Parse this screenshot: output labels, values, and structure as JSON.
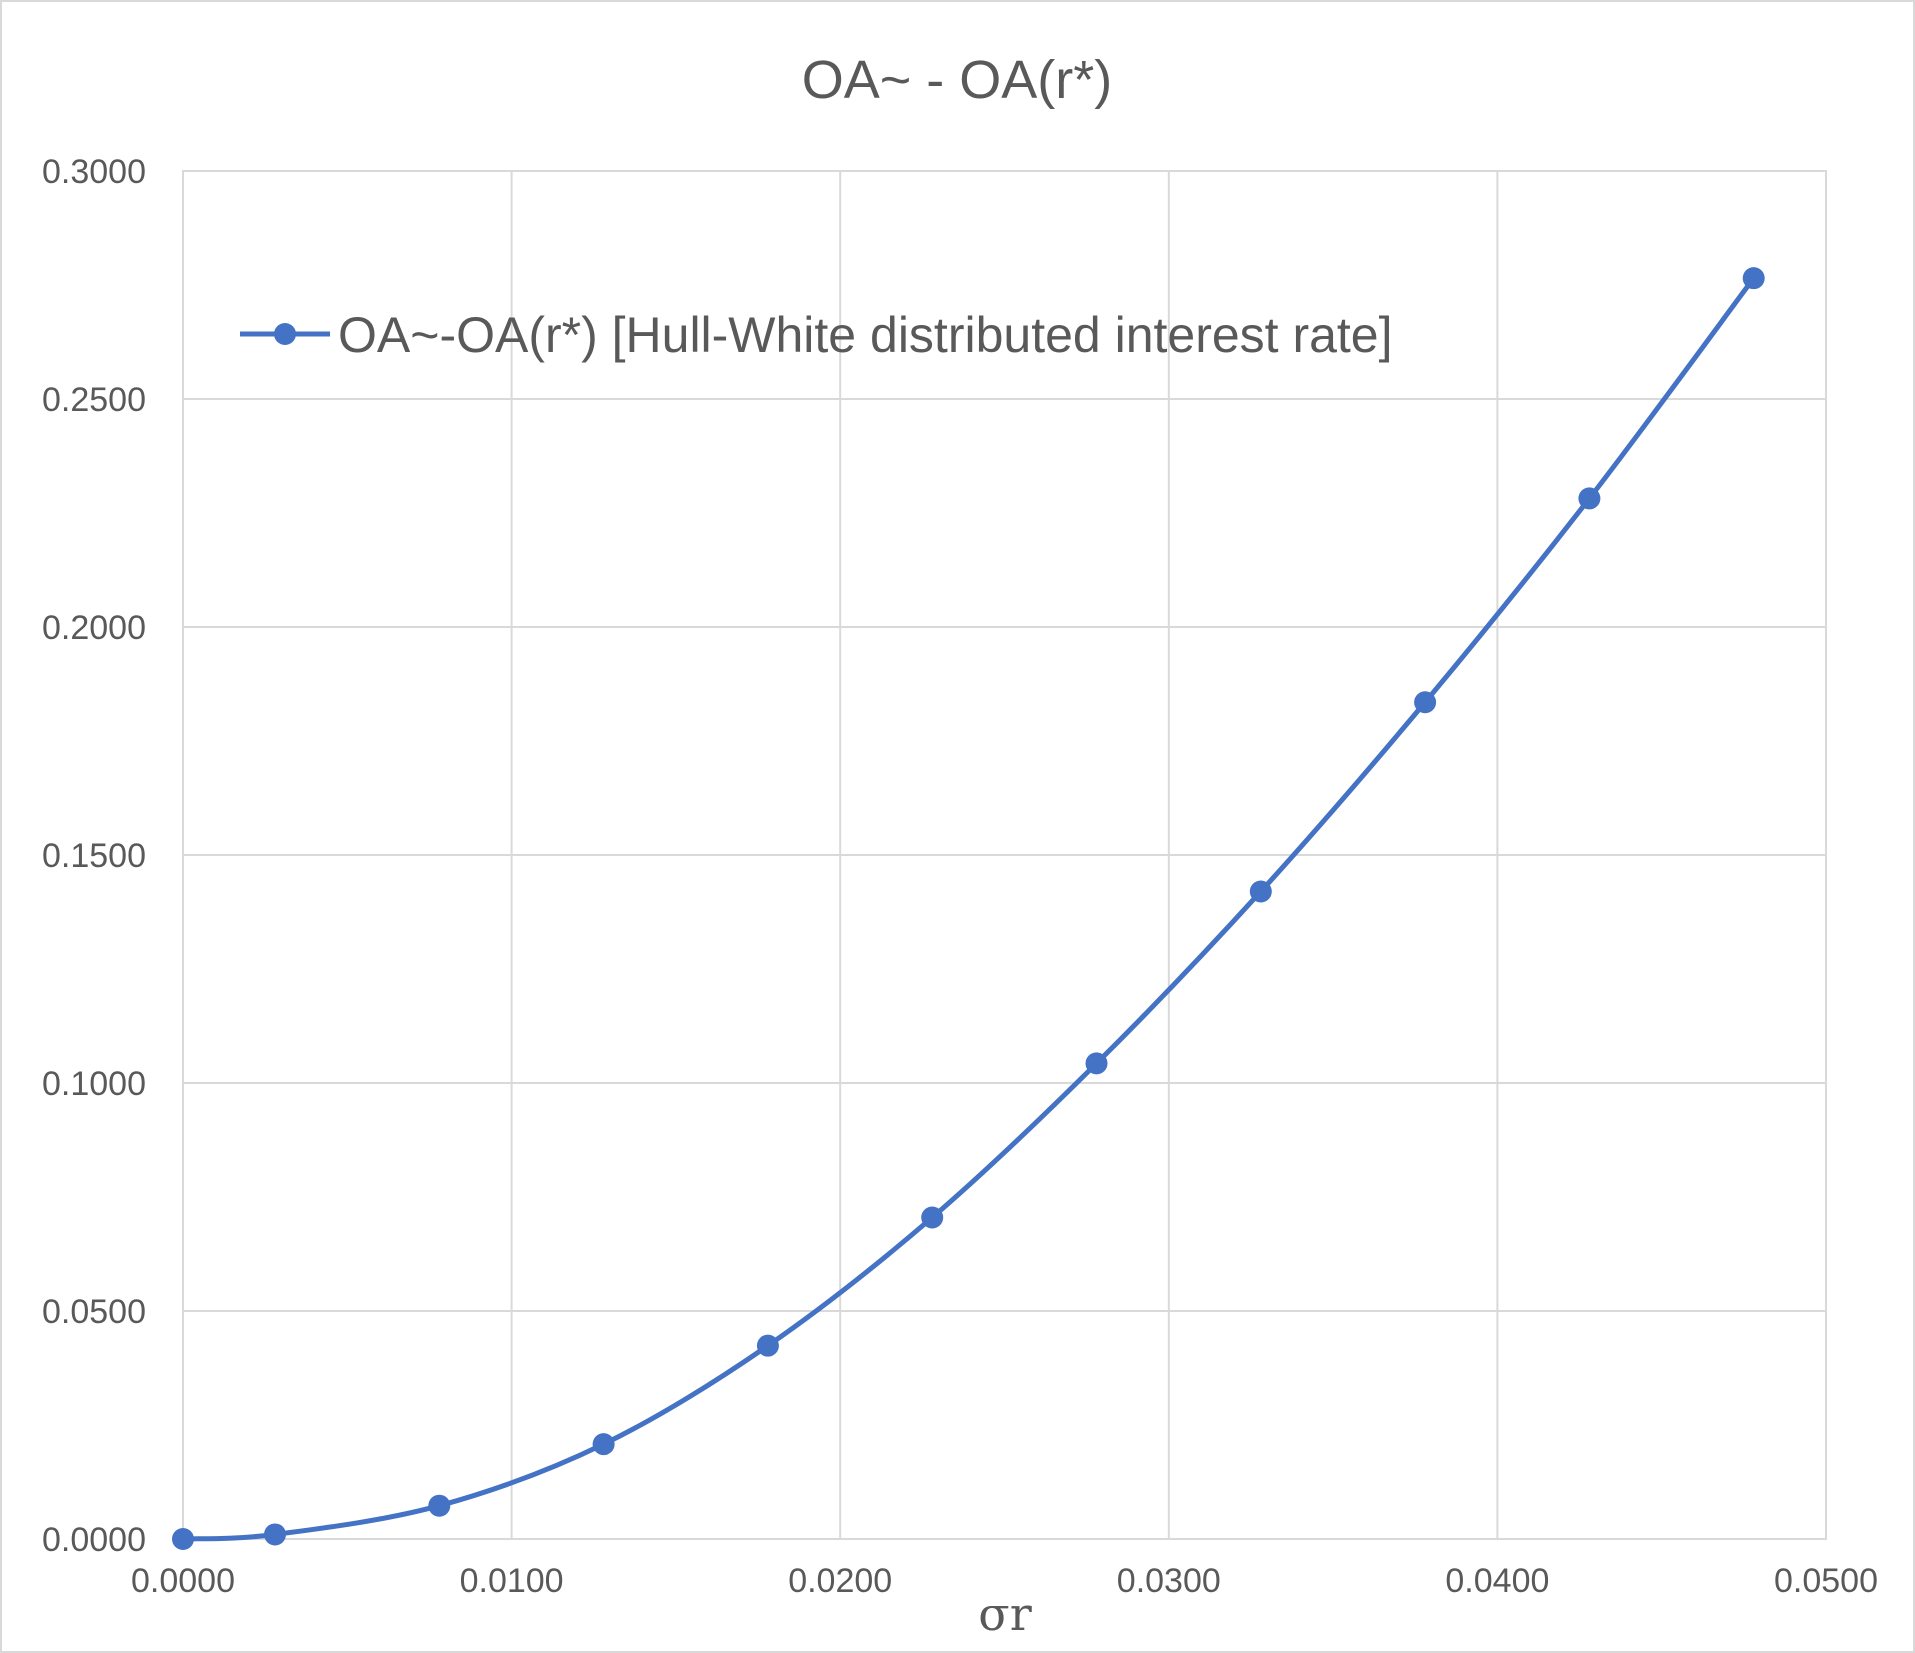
{
  "chart_data": {
    "type": "line",
    "title": "OA~ - OA(r*)",
    "xlabel": "σr",
    "ylabel": "",
    "xlim": [
      0,
      0.05
    ],
    "ylim": [
      0,
      0.3
    ],
    "x_ticks": [
      "0.0000",
      "0.0100",
      "0.0200",
      "0.0300",
      "0.0400",
      "0.0500"
    ],
    "y_ticks": [
      "0.0000",
      "0.0500",
      "0.1000",
      "0.1500",
      "0.2000",
      "0.2500",
      "0.3000"
    ],
    "grid": true,
    "legend": "top-left",
    "smooth": true,
    "series": [
      {
        "name": "OA~-OA(r*) [Hull-White distributed interest rate]",
        "color": "#4472c4",
        "marker": "circle",
        "x": [
          0.0,
          0.0028,
          0.0078,
          0.0128,
          0.0178,
          0.0228,
          0.0278,
          0.0328,
          0.0378,
          0.0428,
          0.0478
        ],
        "y": [
          0.0,
          0.001,
          0.0073,
          0.0208,
          0.0424,
          0.0705,
          0.1043,
          0.142,
          0.1835,
          0.2282,
          0.2765
        ]
      }
    ]
  }
}
